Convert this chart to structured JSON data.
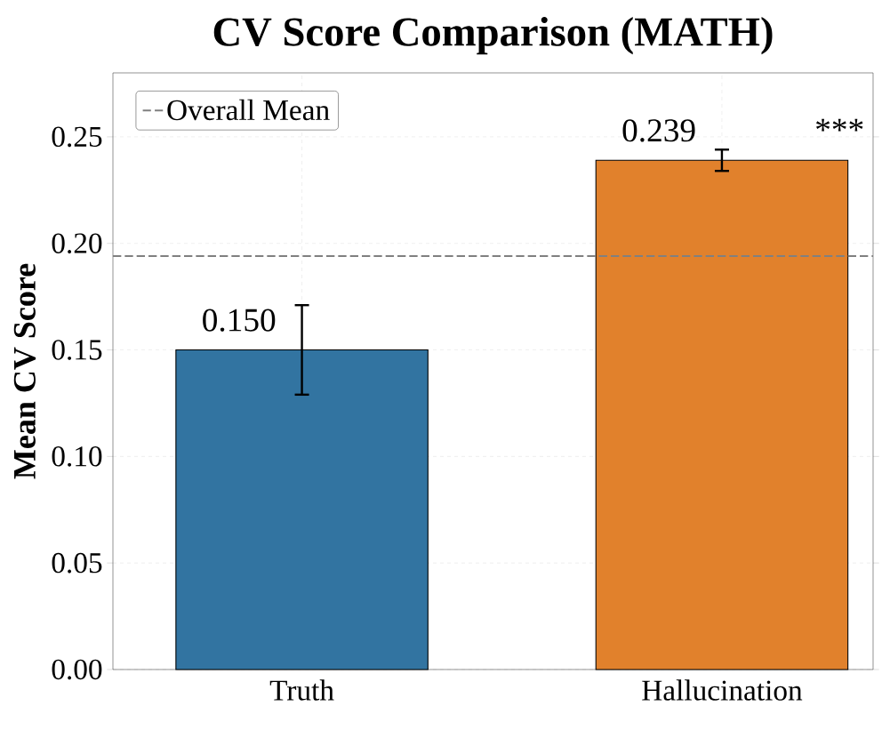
{
  "chart_data": {
    "type": "bar",
    "title": "CV Score Comparison (MATH)",
    "ylabel": "Mean CV Score",
    "categories": [
      "Truth",
      "Hallucination"
    ],
    "values": [
      0.15,
      0.239
    ],
    "colors": [
      "#3274a1",
      "#e1812c"
    ],
    "errors": [
      0.021,
      0.005
    ],
    "value_labels": [
      "0.150",
      "0.239"
    ],
    "ylim": [
      0,
      0.28
    ],
    "yticks": [
      {
        "value": 0,
        "label": "0.00"
      },
      {
        "value": 0.05,
        "label": "0.05"
      },
      {
        "value": 0.1,
        "label": "0.10"
      },
      {
        "value": 0.15,
        "label": "0.15"
      },
      {
        "value": 0.2,
        "label": "0.20"
      },
      {
        "value": 0.25,
        "label": "0.25"
      }
    ],
    "ref_lines": [
      {
        "axis": "y",
        "value": 0.194,
        "label": "Overall Mean",
        "color": "#808080",
        "line_style": "dashed"
      }
    ],
    "annotations": [
      "***"
    ],
    "grid": true,
    "legend": "top left"
  }
}
